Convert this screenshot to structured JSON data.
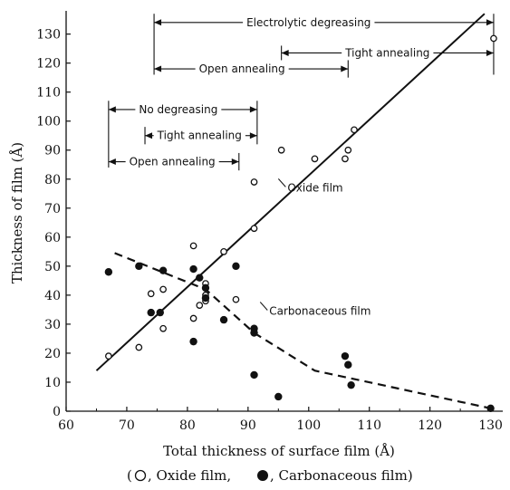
{
  "chart_data": {
    "type": "scatter",
    "xlabel": "Total thickness of surface film (Å)",
    "ylabel": "Thickness of film (Å)",
    "caption": {
      "open": "(",
      "oxide_sep": ", Oxide film,   ",
      "carb_sep": ", Carbonaceous film)"
    },
    "xlim": [
      60,
      132
    ],
    "ylim": [
      0,
      138
    ],
    "x_ticks": [
      60,
      70,
      80,
      90,
      100,
      110,
      120,
      130
    ],
    "y_ticks": [
      0,
      10,
      20,
      30,
      40,
      50,
      60,
      70,
      80,
      90,
      100,
      110,
      120,
      130
    ],
    "grid": false,
    "series": [
      {
        "name": "Oxide film",
        "marker": "open-circle",
        "points": [
          [
            67,
            19
          ],
          [
            72,
            22
          ],
          [
            74,
            40.5
          ],
          [
            76,
            28.5
          ],
          [
            76,
            42
          ],
          [
            81,
            57
          ],
          [
            81,
            32
          ],
          [
            82,
            36.5
          ],
          [
            83,
            44
          ],
          [
            83,
            40
          ],
          [
            83,
            38
          ],
          [
            86,
            55
          ],
          [
            88,
            38.5
          ],
          [
            91,
            79
          ],
          [
            91,
            63
          ],
          [
            95.5,
            90
          ],
          [
            101,
            87
          ],
          [
            106,
            87
          ],
          [
            106.5,
            90
          ],
          [
            107.5,
            97
          ],
          [
            130.5,
            128.5
          ]
        ]
      },
      {
        "name": "Carbonaceous film",
        "marker": "filled-circle",
        "points": [
          [
            67,
            48
          ],
          [
            72,
            50
          ],
          [
            74,
            34
          ],
          [
            75.5,
            34
          ],
          [
            76,
            48.5
          ],
          [
            81,
            49
          ],
          [
            81,
            24
          ],
          [
            82,
            46
          ],
          [
            83,
            42.5
          ],
          [
            83,
            39
          ],
          [
            86,
            31.5
          ],
          [
            88,
            50
          ],
          [
            91,
            28.5
          ],
          [
            91,
            27
          ],
          [
            91,
            12.5
          ],
          [
            95,
            5
          ],
          [
            106,
            19
          ],
          [
            106.5,
            16
          ],
          [
            107,
            9
          ],
          [
            130,
            1
          ]
        ]
      }
    ],
    "fit_lines": [
      {
        "label": "Oxide film",
        "style": "solid",
        "points": [
          [
            65,
            14
          ],
          [
            129,
            137
          ]
        ]
      },
      {
        "label": "Carbonaceous film",
        "style": "dashed",
        "points": [
          [
            68,
            54.5
          ],
          [
            83,
            42
          ],
          [
            91,
            27
          ],
          [
            101,
            14
          ],
          [
            130,
            1
          ]
        ]
      }
    ],
    "range_annotations": [
      {
        "label": "Electrolytic degreasing",
        "x": [
          74.5,
          130.5
        ],
        "y": 134,
        "label_x": 100
      },
      {
        "label": "Tight annealing",
        "x": [
          95.5,
          130.5
        ],
        "y": 123.5,
        "label_x": 113
      },
      {
        "label": "Open annealing",
        "x": [
          74.5,
          106.5
        ],
        "y": 118,
        "label_x": 89
      },
      {
        "label": "No degreasing",
        "x": [
          67,
          91.5
        ],
        "y": 104,
        "label_x": 78.5
      },
      {
        "label": "Tight annealing",
        "x": [
          73,
          91.5
        ],
        "y": 95,
        "label_x": 82
      },
      {
        "label": "Open annealing",
        "x": [
          67,
          88.5
        ],
        "y": 86,
        "label_x": 77.5
      }
    ],
    "range_ticks": [
      {
        "x": 74.5,
        "y": [
          116,
          137
        ]
      },
      {
        "x": 130.5,
        "y": [
          116,
          137
        ]
      },
      {
        "x": 95.5,
        "y": [
          121,
          126
        ]
      },
      {
        "x": 106.5,
        "y": [
          115,
          121
        ]
      },
      {
        "x": 67,
        "y": [
          84,
          107
        ]
      },
      {
        "x": 91.5,
        "y": [
          92,
          107
        ]
      },
      {
        "x": 73,
        "y": [
          92,
          98
        ]
      },
      {
        "x": 88.5,
        "y": [
          83,
          89
        ]
      }
    ],
    "curve_labels": [
      {
        "text": "Oxide film",
        "x": 96.5,
        "y": 77
      },
      {
        "text": "Carbonaceous film",
        "x": 93.5,
        "y": 34.5
      }
    ]
  }
}
